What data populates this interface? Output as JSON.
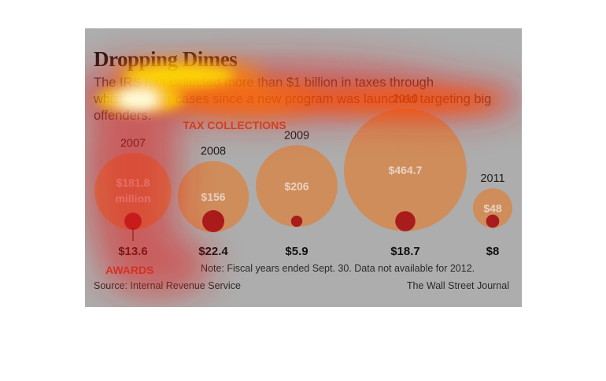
{
  "title": "Dropping Dimes",
  "subtitle": "The IRS has collected more than $1 billion in taxes through whistleblower cases since a new program was launched targeting big offenders.",
  "note": "Note: Fiscal years ended Sept. 30. Data not available for 2012.",
  "source": "Source: Internal Revenue Service",
  "credit": "The Wall Street Journal",
  "colors": {
    "collection_bubble": "#cf8d5c",
    "award_bubble": "#a91c1c",
    "label_accent": "#c8432a",
    "panel_background": "#adadad"
  },
  "chart_data": {
    "type": "bubble",
    "series": [
      {
        "name": "TAX COLLECTIONS",
        "values": [
          181.8,
          156,
          206,
          464.7,
          48
        ]
      },
      {
        "name": "AWARDS",
        "values": [
          13.6,
          22.4,
          5.9,
          18.7,
          8
        ]
      }
    ],
    "categories": [
      "2007",
      "2008",
      "2009",
      "2010",
      "2011"
    ],
    "collection_labels": [
      "$181.8",
      "$156",
      "$206",
      "$464.7",
      "$48"
    ],
    "collection_unit_note": "million",
    "award_labels": [
      "$13.6",
      "$22.4",
      "$5.9",
      "$18.7",
      "$8"
    ]
  },
  "overlay": {
    "type": "attention-heatmap"
  }
}
